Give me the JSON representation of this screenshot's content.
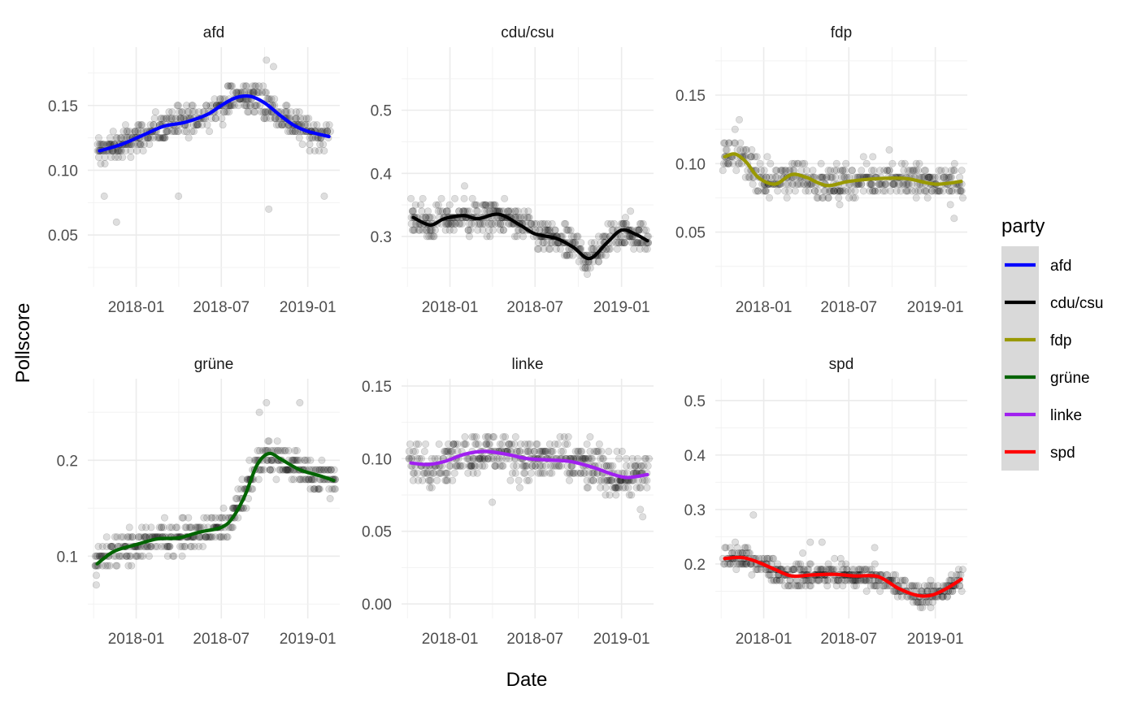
{
  "chart_data": {
    "type": "line",
    "xlabel": "Date",
    "ylabel": "Pollscore",
    "x_tick_labels": [
      "2018-01",
      "2018-07",
      "2019-01"
    ],
    "x_range": [
      "2017-09-20",
      "2019-03-10"
    ],
    "grid": true,
    "legend": {
      "title": "party",
      "position": "right",
      "entries": [
        {
          "label": "afd",
          "color": "#0000FF"
        },
        {
          "label": "cdu/csu",
          "color": "#000000"
        },
        {
          "label": "fdp",
          "color": "#999900"
        },
        {
          "label": "grüne",
          "color": "#006400"
        },
        {
          "label": "linke",
          "color": "#A020F0"
        },
        {
          "label": "spd",
          "color": "#FF0000"
        }
      ]
    },
    "panels": [
      {
        "title": "afd",
        "color": "#0000FF",
        "ylim": [
          0.01,
          0.195
        ],
        "y_ticks": [
          0.05,
          0.1,
          0.15
        ],
        "y_tick_labels": [
          "0.05",
          "0.10",
          "0.15"
        ],
        "smooth": [
          [
            "2017-10-15",
            0.115
          ],
          [
            "2017-12-01",
            0.12
          ],
          [
            "2018-01-15",
            0.127
          ],
          [
            "2018-03-01",
            0.134
          ],
          [
            "2018-04-15",
            0.137
          ],
          [
            "2018-06-01",
            0.143
          ],
          [
            "2018-07-01",
            0.15
          ],
          [
            "2018-08-01",
            0.156
          ],
          [
            "2018-09-01",
            0.157
          ],
          [
            "2018-10-01",
            0.152
          ],
          [
            "2018-11-01",
            0.143
          ],
          [
            "2018-12-01",
            0.135
          ],
          [
            "2019-01-01",
            0.13
          ],
          [
            "2019-02-15",
            0.126
          ]
        ],
        "points": {
          "cloud": 0.008,
          "outliers": [
            [
              "2017-11-20",
              0.06
            ],
            [
              "2018-10-10",
              0.07
            ],
            [
              "2017-10-25",
              0.08
            ],
            [
              "2018-04-01",
              0.08
            ],
            [
              "2019-02-05",
              0.08
            ],
            [
              "2018-10-20",
              0.18
            ],
            [
              "2018-10-05",
              0.185
            ]
          ]
        }
      },
      {
        "title": "cdu/csu",
        "color": "#000000",
        "ylim": [
          0.22,
          0.6
        ],
        "y_ticks": [
          0.3,
          0.4,
          0.5
        ],
        "y_tick_labels": [
          "0.3",
          "0.4",
          "0.5"
        ],
        "smooth": [
          [
            "2017-10-15",
            0.33
          ],
          [
            "2017-11-20",
            0.318
          ],
          [
            "2017-12-20",
            0.328
          ],
          [
            "2018-01-30",
            0.333
          ],
          [
            "2018-03-01",
            0.328
          ],
          [
            "2018-04-15",
            0.335
          ],
          [
            "2018-05-30",
            0.318
          ],
          [
            "2018-07-01",
            0.304
          ],
          [
            "2018-08-15",
            0.297
          ],
          [
            "2018-09-20",
            0.283
          ],
          [
            "2018-10-25",
            0.265
          ],
          [
            "2018-12-01",
            0.29
          ],
          [
            "2019-01-01",
            0.31
          ],
          [
            "2019-02-01",
            0.303
          ],
          [
            "2019-02-25",
            0.293
          ]
        ],
        "points": {
          "cloud": 0.018,
          "outliers": [
            [
              "2017-10-10",
              0.36
            ],
            [
              "2018-02-01",
              0.38
            ],
            [
              "2019-01-20",
              0.34
            ],
            [
              "2018-10-20",
              0.24
            ]
          ]
        }
      },
      {
        "title": "fdp",
        "color": "#999900",
        "ylim": [
          0.01,
          0.185
        ],
        "y_ticks": [
          0.05,
          0.1,
          0.15
        ],
        "y_tick_labels": [
          "0.05",
          "0.10",
          "0.15"
        ],
        "smooth": [
          [
            "2017-10-10",
            0.105
          ],
          [
            "2017-11-01",
            0.107
          ],
          [
            "2017-11-25",
            0.101
          ],
          [
            "2017-12-20",
            0.09
          ],
          [
            "2018-01-25",
            0.085
          ],
          [
            "2018-03-01",
            0.092
          ],
          [
            "2018-04-01",
            0.09
          ],
          [
            "2018-05-15",
            0.084
          ],
          [
            "2018-07-01",
            0.087
          ],
          [
            "2018-09-01",
            0.089
          ],
          [
            "2018-11-01",
            0.089
          ],
          [
            "2019-01-01",
            0.085
          ],
          [
            "2019-02-25",
            0.087
          ]
        ],
        "points": {
          "cloud": 0.009,
          "outliers": [
            [
              "2017-11-10",
              0.132
            ],
            [
              "2017-11-01",
              0.125
            ],
            [
              "2018-09-25",
              0.11
            ],
            [
              "2019-02-10",
              0.06
            ]
          ]
        }
      },
      {
        "title": "grüne",
        "color": "#006400",
        "ylim": [
          0.035,
          0.285
        ],
        "y_ticks": [
          0.1,
          0.2
        ],
        "y_tick_labels": [
          "0.1",
          "0.2"
        ],
        "smooth": [
          [
            "2017-10-10",
            0.092
          ],
          [
            "2017-11-15",
            0.105
          ],
          [
            "2018-01-01",
            0.112
          ],
          [
            "2018-02-15",
            0.118
          ],
          [
            "2018-04-01",
            0.119
          ],
          [
            "2018-05-15",
            0.125
          ],
          [
            "2018-07-01",
            0.13
          ],
          [
            "2018-07-25",
            0.14
          ],
          [
            "2018-08-20",
            0.163
          ],
          [
            "2018-09-15",
            0.195
          ],
          [
            "2018-10-10",
            0.207
          ],
          [
            "2018-11-05",
            0.201
          ],
          [
            "2018-12-15",
            0.19
          ],
          [
            "2019-01-25",
            0.184
          ],
          [
            "2019-02-25",
            0.179
          ]
        ],
        "points": {
          "cloud": 0.012,
          "outliers": [
            [
              "2018-10-05",
              0.26
            ],
            [
              "2018-12-15",
              0.26
            ],
            [
              "2018-09-20",
              0.25
            ],
            [
              "2017-10-08",
              0.07
            ]
          ]
        }
      },
      {
        "title": "linke",
        "color": "#A020F0",
        "ylim": [
          -0.01,
          0.155
        ],
        "y_ticks": [
          0.0,
          0.05,
          0.1,
          0.15
        ],
        "y_tick_labels": [
          "0.00",
          "0.05",
          "0.10",
          "0.15"
        ],
        "smooth": [
          [
            "2017-10-10",
            0.097
          ],
          [
            "2017-11-15",
            0.096
          ],
          [
            "2017-12-20",
            0.098
          ],
          [
            "2018-02-01",
            0.103
          ],
          [
            "2018-03-15",
            0.105
          ],
          [
            "2018-05-01",
            0.103
          ],
          [
            "2018-06-15",
            0.1
          ],
          [
            "2018-08-01",
            0.099
          ],
          [
            "2018-09-15",
            0.098
          ],
          [
            "2018-11-01",
            0.094
          ],
          [
            "2018-12-15",
            0.089
          ],
          [
            "2019-01-15",
            0.087
          ],
          [
            "2019-02-25",
            0.089
          ]
        ],
        "points": {
          "cloud": 0.01,
          "outliers": [
            [
              "2018-04-01",
              0.07
            ],
            [
              "2019-02-15",
              0.06
            ],
            [
              "2019-02-10",
              0.065
            ]
          ]
        }
      },
      {
        "title": "spd",
        "color": "#FF0000",
        "ylim": [
          0.1,
          0.54
        ],
        "y_ticks": [
          0.2,
          0.3,
          0.4,
          0.5
        ],
        "y_tick_labels": [
          "0.2",
          "0.3",
          "0.4",
          "0.5"
        ],
        "smooth": [
          [
            "2017-10-10",
            0.21
          ],
          [
            "2017-11-15",
            0.212
          ],
          [
            "2017-12-15",
            0.205
          ],
          [
            "2018-01-25",
            0.19
          ],
          [
            "2018-03-01",
            0.178
          ],
          [
            "2018-04-15",
            0.18
          ],
          [
            "2018-06-01",
            0.181
          ],
          [
            "2018-07-15",
            0.178
          ],
          [
            "2018-09-01",
            0.177
          ],
          [
            "2018-10-15",
            0.155
          ],
          [
            "2018-11-25",
            0.142
          ],
          [
            "2018-12-25",
            0.143
          ],
          [
            "2019-01-25",
            0.155
          ],
          [
            "2019-02-25",
            0.172
          ]
        ],
        "points": {
          "cloud": 0.015,
          "outliers": [
            [
              "2017-12-10",
              0.29
            ],
            [
              "2018-04-10",
              0.24
            ],
            [
              "2018-05-05",
              0.24
            ],
            [
              "2018-08-25",
              0.23
            ],
            [
              "2018-03-25",
              0.22
            ]
          ]
        }
      }
    ]
  }
}
